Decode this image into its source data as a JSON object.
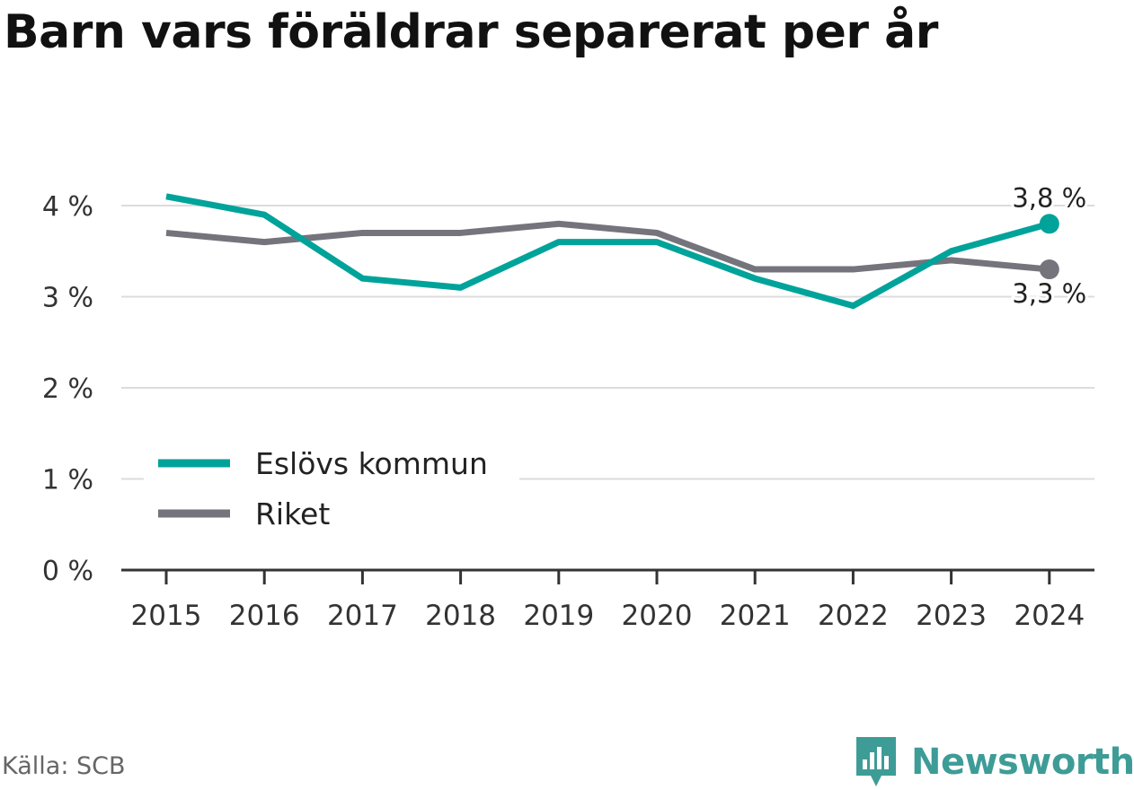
{
  "title": "Barn vars föräldrar separerat per år",
  "source": "Källa: SCB",
  "brand": "Newsworthy",
  "chart_data": {
    "type": "line",
    "title": "Barn vars föräldrar separerat per år",
    "xlabel": "",
    "ylabel": "",
    "categories": [
      "2015",
      "2016",
      "2017",
      "2018",
      "2019",
      "2020",
      "2021",
      "2022",
      "2023",
      "2024"
    ],
    "y_ticks": [
      0,
      1,
      2,
      3,
      4
    ],
    "y_tick_labels": [
      "0 %",
      "1 %",
      "2 %",
      "3 %",
      "4 %"
    ],
    "ylim": [
      0,
      4
    ],
    "grid": true,
    "legend_position": "bottom-left",
    "series": [
      {
        "name": "Eslövs kommun",
        "color": "#00a39a",
        "values": [
          4.1,
          3.9,
          3.2,
          3.1,
          3.6,
          3.6,
          3.2,
          2.9,
          3.5,
          3.8
        ],
        "end_label": "3,8 %"
      },
      {
        "name": "Riket",
        "color": "#75737b",
        "values": [
          3.7,
          3.6,
          3.7,
          3.7,
          3.8,
          3.7,
          3.3,
          3.3,
          3.4,
          3.3
        ],
        "end_label": "3,3 %"
      }
    ]
  }
}
